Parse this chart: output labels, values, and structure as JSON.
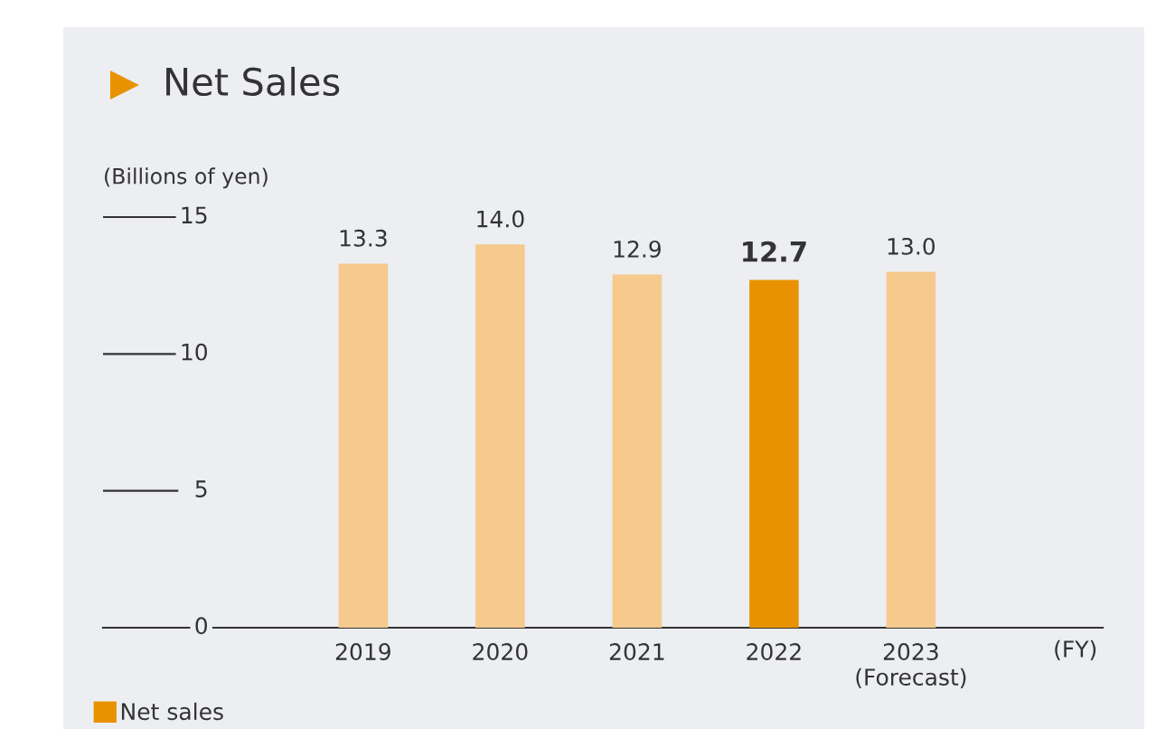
{
  "chart_data": {
    "type": "bar",
    "title": "Net Sales",
    "ylabel": "(Billions of yen)",
    "categories": [
      "2019",
      "2020",
      "2021",
      "2022",
      "2023\n(Forecast)"
    ],
    "series": [
      {
        "name": "Net sales",
        "color": "#e99200",
        "colors": [
          "#f5ca8c",
          "#f5ca8c",
          "#f5ca8c",
          "#e99200",
          "#f5ca8c"
        ],
        "values": [
          13.3,
          14.0,
          12.9,
          12.7,
          13.0
        ]
      }
    ],
    "ylim": [
      0,
      15
    ],
    "yticks": [
      0,
      5,
      10,
      15
    ],
    "value_labels": [
      "13.3",
      "14.0",
      "12.9",
      "12.7",
      "13.0"
    ],
    "grid": false,
    "legend": "bottom left",
    "annotations": [
      "(FY)"
    ]
  }
}
